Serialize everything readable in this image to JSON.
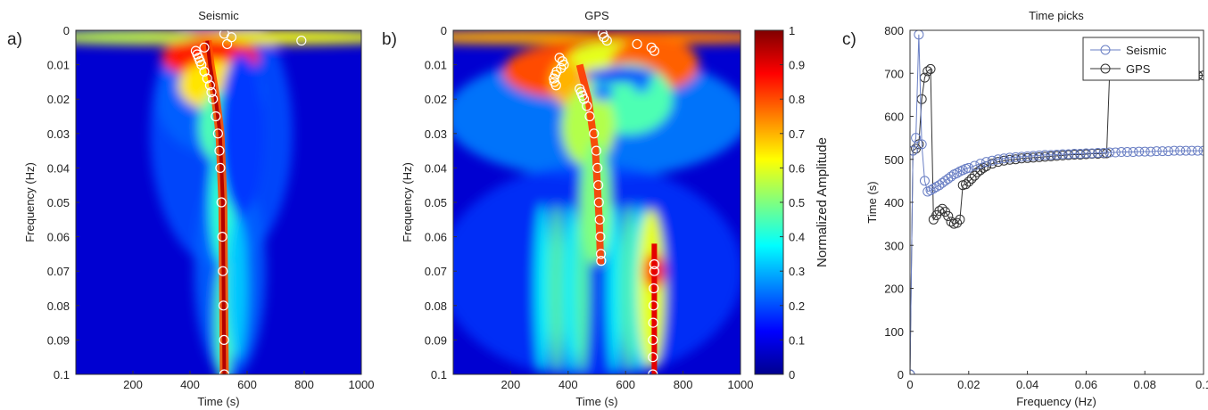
{
  "chart_data": [
    {
      "panel_label": "a)",
      "type": "heatmap",
      "title": "Seismic",
      "xlabel": "Time (s)",
      "ylabel": "Frequency (Hz)",
      "xlim": [
        0,
        1000
      ],
      "ylim": [
        0,
        0.1
      ],
      "y_reversed": true,
      "xticks": [
        "200",
        "400",
        "600",
        "800",
        "1000"
      ],
      "yticks": [
        "0",
        "0.01",
        "0.02",
        "0.03",
        "0.04",
        "0.05",
        "0.06",
        "0.07",
        "0.08",
        "0.09",
        "0.1"
      ],
      "colormap": "jet",
      "features": {
        "low_freq_band": {
          "f_max": 0.004,
          "level": 0.9
        },
        "main_ridge": [
          [
            0.003,
            460
          ],
          [
            0.01,
            470
          ],
          [
            0.02,
            490
          ],
          [
            0.03,
            505
          ],
          [
            0.05,
            515
          ],
          [
            0.1,
            520
          ]
        ],
        "secondary_ridge": {
          "x": 560,
          "f_range": [
            0.055,
            0.1
          ],
          "level": 0.3
        }
      },
      "picks": [
        [
          0.001,
          520
        ],
        [
          0.002,
          545
        ],
        [
          0.003,
          790
        ],
        [
          0.004,
          530
        ],
        [
          0.005,
          450
        ],
        [
          0.006,
          420
        ],
        [
          0.007,
          425
        ],
        [
          0.008,
          430
        ],
        [
          0.009,
          435
        ],
        [
          0.01,
          440
        ],
        [
          0.012,
          450
        ],
        [
          0.014,
          460
        ],
        [
          0.016,
          470
        ],
        [
          0.018,
          475
        ],
        [
          0.02,
          480
        ],
        [
          0.025,
          490
        ],
        [
          0.03,
          498
        ],
        [
          0.035,
          503
        ],
        [
          0.04,
          506
        ],
        [
          0.05,
          510
        ],
        [
          0.06,
          513
        ],
        [
          0.07,
          515
        ],
        [
          0.08,
          517
        ],
        [
          0.09,
          519
        ],
        [
          0.1,
          520
        ]
      ]
    },
    {
      "panel_label": "b)",
      "type": "heatmap",
      "title": "GPS",
      "xlabel": "Time (s)",
      "ylabel": "Frequency (Hz)",
      "xlim": [
        0,
        1000
      ],
      "ylim": [
        0,
        0.1
      ],
      "y_reversed": true,
      "xticks": [
        "200",
        "400",
        "600",
        "800",
        "1000"
      ],
      "yticks": [
        "0",
        "0.01",
        "0.02",
        "0.03",
        "0.04",
        "0.05",
        "0.06",
        "0.07",
        "0.08",
        "0.09",
        "0.1"
      ],
      "colormap": "jet",
      "colorbar": {
        "label": "Normalized Amplitude",
        "ticks": [
          "0",
          "0.1",
          "0.2",
          "0.3",
          "0.4",
          "0.5",
          "0.6",
          "0.7",
          "0.8",
          "0.9",
          "1"
        ],
        "range": [
          0,
          1
        ]
      },
      "picks": [
        [
          0.001,
          520
        ],
        [
          0.002,
          525
        ],
        [
          0.003,
          535
        ],
        [
          0.004,
          640
        ],
        [
          0.005,
          690
        ],
        [
          0.006,
          700
        ],
        [
          0.008,
          370
        ],
        [
          0.009,
          380
        ],
        [
          0.01,
          385
        ],
        [
          0.011,
          375
        ],
        [
          0.012,
          360
        ],
        [
          0.013,
          355
        ],
        [
          0.014,
          350
        ],
        [
          0.015,
          352
        ],
        [
          0.016,
          358
        ],
        [
          0.017,
          440
        ],
        [
          0.018,
          445
        ],
        [
          0.019,
          450
        ],
        [
          0.02,
          455
        ],
        [
          0.022,
          465
        ],
        [
          0.025,
          475
        ],
        [
          0.03,
          490
        ],
        [
          0.035,
          498
        ],
        [
          0.04,
          502
        ],
        [
          0.045,
          505
        ],
        [
          0.05,
          507
        ],
        [
          0.055,
          510
        ],
        [
          0.06,
          512
        ],
        [
          0.065,
          514
        ],
        [
          0.067,
          515
        ],
        [
          0.068,
          700
        ],
        [
          0.07,
          700
        ],
        [
          0.075,
          698
        ],
        [
          0.08,
          697
        ],
        [
          0.085,
          696
        ],
        [
          0.09,
          695
        ],
        [
          0.095,
          695
        ],
        [
          0.1,
          695
        ]
      ]
    },
    {
      "panel_label": "c)",
      "type": "line",
      "title": "Time picks",
      "xlabel": "Frequency (Hz)",
      "ylabel": "Time (s)",
      "xlim": [
        0,
        0.1
      ],
      "ylim": [
        0,
        800
      ],
      "xticks": [
        "0",
        "0.02",
        "0.04",
        "0.06",
        "0.08",
        "0.1"
      ],
      "yticks": [
        "0",
        "100",
        "200",
        "300",
        "400",
        "500",
        "600",
        "700",
        "800"
      ],
      "legend": {
        "position": "top-right"
      },
      "series": [
        {
          "name": "Seismic",
          "color": "#6a7fc4",
          "marker": "circle",
          "x": [
            0,
            0.001,
            0.002,
            0.003,
            0.004,
            0.005,
            0.006,
            0.007,
            0.008,
            0.009,
            0.01,
            0.011,
            0.012,
            0.013,
            0.014,
            0.015,
            0.016,
            0.017,
            0.018,
            0.019,
            0.02,
            0.022,
            0.024,
            0.026,
            0.028,
            0.03,
            0.032,
            0.034,
            0.036,
            0.038,
            0.04,
            0.042,
            0.044,
            0.046,
            0.048,
            0.05,
            0.052,
            0.054,
            0.056,
            0.058,
            0.06,
            0.062,
            0.064,
            0.066,
            0.068,
            0.07,
            0.072,
            0.074,
            0.076,
            0.078,
            0.08,
            0.082,
            0.084,
            0.086,
            0.088,
            0.09,
            0.092,
            0.094,
            0.096,
            0.098,
            0.1
          ],
          "y": [
            0,
            520,
            550,
            790,
            535,
            450,
            425,
            428,
            432,
            436,
            440,
            445,
            450,
            455,
            460,
            465,
            468,
            472,
            475,
            478,
            480,
            485,
            490,
            494,
            497,
            500,
            502,
            504,
            505,
            506,
            507,
            508,
            509,
            510,
            510,
            511,
            512,
            512,
            513,
            513,
            514,
            514,
            515,
            515,
            516,
            516,
            517,
            517,
            517,
            518,
            518,
            518,
            519,
            519,
            519,
            520,
            520,
            520,
            520,
            520,
            520
          ]
        },
        {
          "name": "GPS",
          "color": "#333333",
          "marker": "circle",
          "x": [
            0,
            0.001,
            0.002,
            0.003,
            0.004,
            0.005,
            0.006,
            0.007,
            0.008,
            0.009,
            0.01,
            0.011,
            0.012,
            0.013,
            0.014,
            0.015,
            0.016,
            0.017,
            0.018,
            0.019,
            0.02,
            0.021,
            0.022,
            0.023,
            0.024,
            0.025,
            0.026,
            0.028,
            0.03,
            0.032,
            0.034,
            0.036,
            0.038,
            0.04,
            0.042,
            0.044,
            0.046,
            0.048,
            0.05,
            0.052,
            0.054,
            0.056,
            0.058,
            0.06,
            0.062,
            0.064,
            0.066,
            0.067,
            0.068,
            0.07,
            0.072,
            0.074,
            0.076,
            0.078,
            0.08,
            0.082,
            0.084,
            0.086,
            0.088,
            0.09,
            0.092,
            0.094,
            0.096,
            0.098,
            0.1
          ],
          "y": [
            0,
            520,
            525,
            535,
            640,
            690,
            705,
            710,
            360,
            370,
            380,
            385,
            378,
            368,
            355,
            350,
            352,
            360,
            440,
            442,
            448,
            455,
            462,
            470,
            475,
            480,
            484,
            490,
            494,
            497,
            499,
            500,
            502,
            503,
            504,
            505,
            506,
            507,
            508,
            509,
            510,
            511,
            511,
            512,
            513,
            513,
            514,
            514,
            700,
            699,
            699,
            698,
            698,
            697,
            697,
            696,
            696,
            696,
            695,
            695,
            695,
            695,
            695,
            695,
            695
          ]
        }
      ]
    }
  ]
}
